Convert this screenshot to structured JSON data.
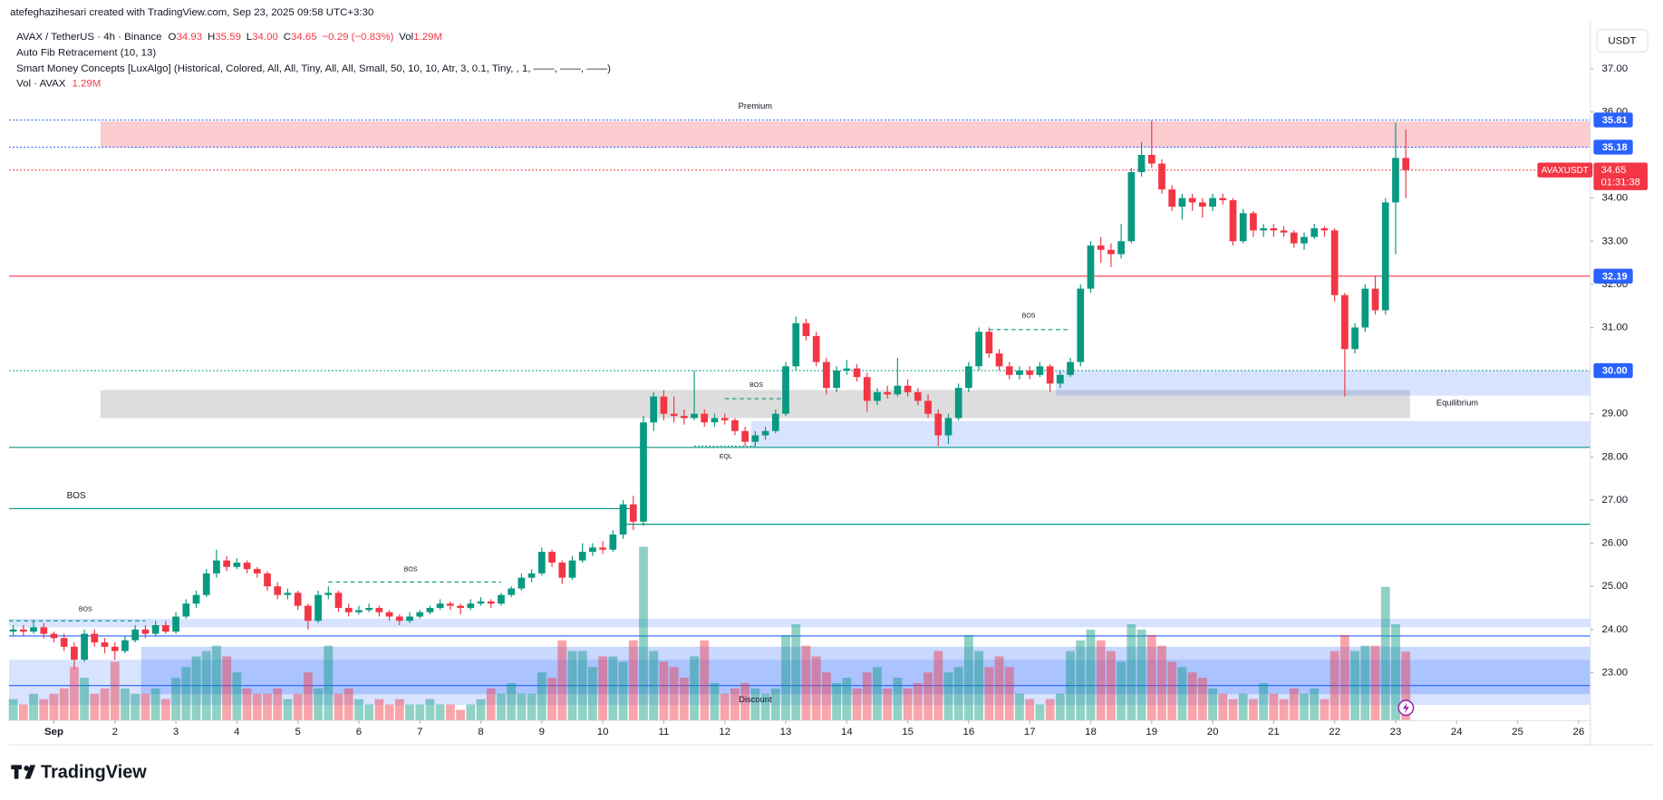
{
  "chart_data": {
    "type": "candlestick",
    "credit": "atefeghazihesari created with TradingView.com, Sep 23, 2025 09:58 UTC+3:30",
    "symbol": "AVAX / TetherUS · 4h · Binance",
    "ohlc": [
      {
        "key": "O",
        "value": "34.93"
      },
      {
        "key": "H",
        "value": "35.59"
      },
      {
        "key": "L",
        "value": "34.00"
      },
      {
        "key": "C",
        "value": "34.65"
      }
    ],
    "change": "−0.29 (−0.83%)",
    "vol_key": "Vol",
    "vol_value": "1.29M",
    "indicators": [
      "Auto Fib Retracement (10, 13)",
      "Smart Money Concepts [LuxAlgo] (Historical, Colored, All, All, Tiny, All, All, Small, 50, 10, 10, Atr, 3, 0.1, Tiny, , 1, ——, ——, ——)"
    ],
    "vol_indicator": "Vol · AVAX",
    "vol_indicator_value": "1.29M",
    "currency": "USDT",
    "brand": "TradingView",
    "up_color": "#089981",
    "down_color": "#f23645",
    "ylim": [
      21.3,
      38.1
    ],
    "yticks": [
      {
        "value": 37,
        "label": "37.00"
      },
      {
        "value": 36,
        "label": "36.00"
      },
      {
        "value": 34,
        "label": "34.00"
      },
      {
        "value": 33,
        "label": "33.00"
      },
      {
        "value": 32,
        "label": "32.00"
      },
      {
        "value": 31,
        "label": "31.00"
      },
      {
        "value": 29,
        "label": "29.00"
      },
      {
        "value": 28,
        "label": "28.00"
      },
      {
        "value": 27,
        "label": "27.00"
      },
      {
        "value": 26,
        "label": "26.00"
      },
      {
        "value": 25,
        "label": "25.00"
      },
      {
        "value": 24,
        "label": "24.00"
      },
      {
        "value": 23,
        "label": "23.00"
      }
    ],
    "xticks": [
      {
        "value": 4,
        "label": "Sep"
      },
      {
        "value": 10,
        "label": "2"
      },
      {
        "value": 16,
        "label": "3"
      },
      {
        "value": 22,
        "label": "4"
      },
      {
        "value": 28,
        "label": "5"
      },
      {
        "value": 34,
        "label": "6"
      },
      {
        "value": 40,
        "label": "7"
      },
      {
        "value": 46,
        "label": "8"
      },
      {
        "value": 52,
        "label": "9"
      },
      {
        "value": 58,
        "label": "10"
      },
      {
        "value": 64,
        "label": "11"
      },
      {
        "value": 70,
        "label": "12"
      },
      {
        "value": 76,
        "label": "13"
      },
      {
        "value": 82,
        "label": "14"
      },
      {
        "value": 88,
        "label": "15"
      },
      {
        "value": 94,
        "label": "16"
      },
      {
        "value": 100,
        "label": "17"
      },
      {
        "value": 106,
        "label": "18"
      },
      {
        "value": 112,
        "label": "19"
      },
      {
        "value": 118,
        "label": "20"
      },
      {
        "value": 124,
        "label": "21"
      },
      {
        "value": 130,
        "label": "22"
      },
      {
        "value": 136,
        "label": "23"
      },
      {
        "value": 142,
        "label": "24"
      },
      {
        "value": 148,
        "label": "25"
      },
      {
        "value": 154,
        "label": "26"
      }
    ],
    "candles": [
      [
        23.95,
        24.1,
        23.85,
        24.0
      ],
      [
        24.0,
        24.1,
        23.85,
        23.95
      ],
      [
        23.95,
        24.2,
        23.9,
        24.05
      ],
      [
        24.05,
        24.15,
        23.8,
        23.9
      ],
      [
        23.9,
        23.95,
        23.7,
        23.8
      ],
      [
        23.8,
        23.9,
        23.5,
        23.6
      ],
      [
        23.6,
        23.7,
        23.1,
        23.3
      ],
      [
        23.3,
        24.0,
        23.25,
        23.9
      ],
      [
        23.9,
        24.0,
        23.6,
        23.7
      ],
      [
        23.7,
        23.8,
        23.45,
        23.6
      ],
      [
        23.6,
        23.7,
        23.3,
        23.5
      ],
      [
        23.5,
        23.85,
        23.45,
        23.75
      ],
      [
        23.75,
        24.1,
        23.7,
        24.0
      ],
      [
        24.0,
        24.1,
        23.8,
        23.9
      ],
      [
        23.9,
        24.2,
        23.85,
        24.1
      ],
      [
        24.1,
        24.2,
        23.9,
        23.95
      ],
      [
        23.95,
        24.4,
        23.9,
        24.3
      ],
      [
        24.3,
        24.7,
        24.25,
        24.6
      ],
      [
        24.6,
        24.9,
        24.5,
        24.8
      ],
      [
        24.8,
        25.4,
        24.75,
        25.3
      ],
      [
        25.3,
        25.85,
        25.2,
        25.6
      ],
      [
        25.6,
        25.7,
        25.35,
        25.45
      ],
      [
        25.45,
        25.65,
        25.4,
        25.55
      ],
      [
        25.55,
        25.6,
        25.3,
        25.4
      ],
      [
        25.4,
        25.45,
        25.2,
        25.3
      ],
      [
        25.3,
        25.35,
        24.9,
        25.0
      ],
      [
        25.0,
        25.1,
        24.7,
        24.8
      ],
      [
        24.8,
        24.95,
        24.7,
        24.85
      ],
      [
        24.85,
        24.9,
        24.45,
        24.55
      ],
      [
        24.55,
        24.6,
        24.0,
        24.2
      ],
      [
        24.2,
        24.9,
        24.15,
        24.8
      ],
      [
        24.8,
        25.0,
        24.7,
        24.85
      ],
      [
        24.85,
        24.9,
        24.4,
        24.5
      ],
      [
        24.5,
        24.6,
        24.3,
        24.4
      ],
      [
        24.4,
        24.55,
        24.35,
        24.45
      ],
      [
        24.45,
        24.6,
        24.4,
        24.5
      ],
      [
        24.5,
        24.55,
        24.3,
        24.4
      ],
      [
        24.4,
        24.45,
        24.2,
        24.3
      ],
      [
        24.3,
        24.35,
        24.1,
        24.2
      ],
      [
        24.2,
        24.4,
        24.15,
        24.3
      ],
      [
        24.3,
        24.45,
        24.25,
        24.4
      ],
      [
        24.4,
        24.55,
        24.35,
        24.5
      ],
      [
        24.5,
        24.7,
        24.45,
        24.6
      ],
      [
        24.6,
        24.65,
        24.45,
        24.55
      ],
      [
        24.55,
        24.6,
        24.35,
        24.5
      ],
      [
        24.5,
        24.7,
        24.45,
        24.6
      ],
      [
        24.6,
        24.75,
        24.55,
        24.65
      ],
      [
        24.65,
        24.7,
        24.5,
        24.6
      ],
      [
        24.6,
        24.85,
        24.55,
        24.8
      ],
      [
        24.8,
        25.0,
        24.75,
        24.95
      ],
      [
        24.95,
        25.3,
        24.9,
        25.2
      ],
      [
        25.2,
        25.4,
        25.1,
        25.3
      ],
      [
        25.3,
        25.9,
        25.25,
        25.8
      ],
      [
        25.8,
        25.85,
        25.45,
        25.55
      ],
      [
        25.55,
        25.6,
        25.05,
        25.2
      ],
      [
        25.2,
        25.7,
        25.15,
        25.6
      ],
      [
        25.6,
        26.0,
        25.55,
        25.8
      ],
      [
        25.8,
        26.0,
        25.7,
        25.9
      ],
      [
        25.9,
        26.05,
        25.75,
        25.85
      ],
      [
        25.85,
        26.3,
        25.8,
        26.2
      ],
      [
        26.2,
        27.0,
        26.1,
        26.9
      ],
      [
        26.9,
        27.1,
        26.3,
        26.5
      ],
      [
        26.5,
        28.95,
        26.4,
        28.8
      ],
      [
        28.8,
        29.5,
        28.6,
        29.4
      ],
      [
        29.4,
        29.55,
        28.85,
        29.0
      ],
      [
        29.0,
        29.4,
        28.8,
        28.95
      ],
      [
        28.95,
        29.1,
        28.75,
        28.9
      ],
      [
        28.9,
        30.0,
        28.85,
        29.0
      ],
      [
        29.0,
        29.1,
        28.7,
        28.8
      ],
      [
        28.8,
        29.0,
        28.7,
        28.9
      ],
      [
        28.9,
        29.0,
        28.75,
        28.85
      ],
      [
        28.85,
        28.9,
        28.5,
        28.6
      ],
      [
        28.6,
        28.7,
        28.25,
        28.35
      ],
      [
        28.35,
        28.6,
        28.25,
        28.5
      ],
      [
        28.5,
        28.7,
        28.4,
        28.6
      ],
      [
        28.6,
        29.1,
        28.55,
        29.0
      ],
      [
        29.0,
        30.2,
        28.95,
        30.1
      ],
      [
        30.1,
        31.25,
        30.0,
        31.1
      ],
      [
        31.1,
        31.2,
        30.7,
        30.8
      ],
      [
        30.8,
        30.9,
        30.1,
        30.2
      ],
      [
        30.2,
        30.3,
        29.45,
        29.6
      ],
      [
        29.6,
        30.1,
        29.5,
        30.0
      ],
      [
        30.0,
        30.25,
        29.9,
        30.05
      ],
      [
        30.05,
        30.15,
        29.75,
        29.85
      ],
      [
        29.85,
        29.95,
        29.05,
        29.3
      ],
      [
        29.3,
        29.6,
        29.2,
        29.5
      ],
      [
        29.5,
        29.65,
        29.35,
        29.45
      ],
      [
        29.45,
        30.3,
        29.4,
        29.65
      ],
      [
        29.65,
        29.8,
        29.4,
        29.5
      ],
      [
        29.5,
        29.6,
        29.2,
        29.3
      ],
      [
        29.3,
        29.45,
        28.9,
        29.0
      ],
      [
        29.0,
        29.1,
        28.25,
        28.5
      ],
      [
        28.5,
        29.0,
        28.3,
        28.9
      ],
      [
        28.9,
        29.7,
        28.85,
        29.6
      ],
      [
        29.6,
        30.2,
        29.5,
        30.1
      ],
      [
        30.1,
        31.0,
        30.0,
        30.9
      ],
      [
        30.9,
        31.0,
        30.3,
        30.4
      ],
      [
        30.4,
        30.5,
        30.0,
        30.1
      ],
      [
        30.1,
        30.2,
        29.8,
        29.9
      ],
      [
        29.9,
        30.1,
        29.8,
        30.0
      ],
      [
        30.0,
        30.1,
        29.8,
        29.9
      ],
      [
        29.9,
        30.2,
        29.85,
        30.1
      ],
      [
        30.1,
        30.15,
        29.5,
        29.7
      ],
      [
        29.7,
        30.0,
        29.6,
        29.9
      ],
      [
        29.9,
        30.3,
        29.85,
        30.2
      ],
      [
        30.2,
        32.0,
        30.1,
        31.9
      ],
      [
        31.9,
        33.0,
        31.8,
        32.9
      ],
      [
        32.9,
        33.1,
        32.5,
        32.8
      ],
      [
        32.8,
        32.95,
        32.4,
        32.7
      ],
      [
        32.7,
        33.4,
        32.6,
        33.0
      ],
      [
        33.0,
        34.7,
        32.95,
        34.6
      ],
      [
        34.6,
        35.3,
        34.5,
        35.0
      ],
      [
        35.0,
        35.81,
        34.7,
        34.8
      ],
      [
        34.8,
        34.9,
        34.1,
        34.2
      ],
      [
        34.2,
        34.3,
        33.7,
        33.8
      ],
      [
        33.8,
        34.1,
        33.5,
        34.0
      ],
      [
        34.0,
        34.1,
        33.7,
        33.9
      ],
      [
        33.9,
        34.0,
        33.55,
        33.8
      ],
      [
        33.8,
        34.1,
        33.7,
        34.0
      ],
      [
        34.0,
        34.1,
        33.85,
        33.95
      ],
      [
        33.95,
        34.0,
        32.9,
        33.0
      ],
      [
        33.0,
        33.75,
        32.95,
        33.65
      ],
      [
        33.65,
        33.7,
        33.1,
        33.25
      ],
      [
        33.25,
        33.4,
        33.1,
        33.3
      ],
      [
        33.3,
        33.4,
        33.1,
        33.25
      ],
      [
        33.25,
        33.35,
        33.1,
        33.2
      ],
      [
        33.2,
        33.25,
        32.85,
        32.95
      ],
      [
        32.95,
        33.2,
        32.8,
        33.1
      ],
      [
        33.1,
        33.4,
        33.05,
        33.3
      ],
      [
        33.3,
        33.35,
        33.1,
        33.25
      ],
      [
        33.25,
        33.3,
        31.6,
        31.75
      ],
      [
        31.75,
        31.8,
        29.4,
        30.5
      ],
      [
        30.5,
        31.1,
        30.4,
        31.0
      ],
      [
        31.0,
        32.0,
        30.9,
        31.9
      ],
      [
        31.9,
        32.2,
        31.3,
        31.4
      ],
      [
        31.4,
        34.0,
        31.3,
        33.9
      ],
      [
        33.9,
        35.75,
        32.7,
        34.93
      ],
      [
        34.93,
        35.59,
        34.0,
        34.65
      ]
    ],
    "volume": [
      0.4,
      0.3,
      0.5,
      0.4,
      0.5,
      0.6,
      1.0,
      0.8,
      0.5,
      0.6,
      1.1,
      0.6,
      0.5,
      0.5,
      0.6,
      0.4,
      0.8,
      1.0,
      1.2,
      1.3,
      1.4,
      1.2,
      0.9,
      0.6,
      0.5,
      0.5,
      0.6,
      0.4,
      0.5,
      0.9,
      0.6,
      1.4,
      0.5,
      0.6,
      0.4,
      0.3,
      0.4,
      0.3,
      0.4,
      0.3,
      0.3,
      0.4,
      0.3,
      0.3,
      0.2,
      0.3,
      0.4,
      0.6,
      0.5,
      0.7,
      0.5,
      0.5,
      0.9,
      0.8,
      1.5,
      1.3,
      1.3,
      1.0,
      1.2,
      1.2,
      1.1,
      1.5,
      3.25,
      1.3,
      1.1,
      1.0,
      0.8,
      1.2,
      1.5,
      0.7,
      0.5,
      0.6,
      0.7,
      0.6,
      0.5,
      0.6,
      1.6,
      1.8,
      1.4,
      1.2,
      0.9,
      0.7,
      0.8,
      0.6,
      0.9,
      1.0,
      0.6,
      0.8,
      0.6,
      0.7,
      0.9,
      1.3,
      0.9,
      1.0,
      1.6,
      1.3,
      1.0,
      1.2,
      1.0,
      0.5,
      0.4,
      0.3,
      0.4,
      0.5,
      1.3,
      1.5,
      1.7,
      1.5,
      1.3,
      1.1,
      1.8,
      1.7,
      1.6,
      1.4,
      1.1,
      1.0,
      0.9,
      0.8,
      0.6,
      0.5,
      0.4,
      0.5,
      0.4,
      0.7,
      0.5,
      0.4,
      0.6,
      0.5,
      0.6,
      0.4,
      1.3,
      1.6,
      1.3,
      1.4,
      1.4,
      2.5,
      1.8,
      1.29
    ],
    "zones": [
      {
        "label": "Premium",
        "top": 35.78,
        "bottom": 35.17,
        "from": 9,
        "color": "#f2364540",
        "label_color": "#f23645",
        "label_at": [
          73,
          36.12
        ]
      },
      {
        "label": "Equilibrium",
        "top": 29.55,
        "bottom": 28.9,
        "from": 9,
        "to": 137,
        "color": "#78787840",
        "label_color": "#9598a1",
        "label_at": [
          140,
          29.24
        ]
      },
      {
        "top": 30.0,
        "bottom": 29.42,
        "from": 103,
        "color": "#2962ff2e"
      },
      {
        "top": 28.83,
        "bottom": 28.22,
        "from": 73,
        "color": "#2962ff2e"
      },
      {
        "top": 24.25,
        "bottom": 24.05,
        "from": 0,
        "color": "#2962ff2e"
      },
      {
        "top": 23.6,
        "bottom": 22.5,
        "from": 13,
        "color": "#2962ff40"
      },
      {
        "label": "Discount",
        "top": 23.3,
        "bottom": 22.25,
        "from": 0,
        "color": "#2962ff2e",
        "label_color": "#9598a1",
        "label_at": [
          73,
          22.37
        ]
      }
    ],
    "levels": [
      {
        "value": 35.81,
        "color": "#2962ff",
        "style": "dotted",
        "from": 0
      },
      {
        "value": 35.18,
        "color": "#2962ff",
        "style": "dotted",
        "from": 0
      },
      {
        "value": 34.65,
        "color": "#f23645",
        "style": "dotted",
        "from": 0
      },
      {
        "value": 32.19,
        "color": "#f23645",
        "style": "solid",
        "from": 0
      },
      {
        "value": 30.0,
        "color": "#089981",
        "style": "dotted",
        "from": 0
      },
      {
        "value": 28.22,
        "color": "#089981",
        "style": "solid",
        "from": 0
      },
      {
        "value": 26.8,
        "color": "#089981",
        "style": "solid",
        "from": 0,
        "to": 61
      },
      {
        "value": 26.44,
        "color": "#089981",
        "style": "solid",
        "from": 60
      },
      {
        "value": 23.85,
        "color": "#2962ff",
        "style": "solid",
        "from": 0
      },
      {
        "value": 22.7,
        "color": "#2962ff",
        "style": "solid",
        "from": 0
      },
      {
        "value": 24.2,
        "color": "#089981",
        "style": "dashed",
        "from": 0,
        "to": 13
      },
      {
        "value": 25.1,
        "color": "#089981",
        "style": "dashed",
        "from": 31,
        "to": 48
      },
      {
        "value": 29.35,
        "color": "#089981",
        "style": "dashed",
        "from": 70,
        "to": 76
      },
      {
        "value": 30.95,
        "color": "#089981",
        "style": "dashed",
        "from": 96,
        "to": 104
      },
      {
        "value": 28.25,
        "color": "#089981",
        "style": "dotted",
        "from": 67,
        "to": 73
      }
    ],
    "structure_labels": [
      {
        "text": "BOS",
        "index": 6.2,
        "price": 27.1,
        "large": true
      },
      {
        "text": "BOS",
        "index": 7.1,
        "price": 24.46
      },
      {
        "text": "BOS",
        "index": 39.1,
        "price": 25.39
      },
      {
        "text": "BOS",
        "index": 73.1,
        "price": 29.66
      },
      {
        "text": "BOS",
        "index": 99.9,
        "price": 31.27
      },
      {
        "text": "EQL",
        "index": 70.1,
        "price": 28.0
      }
    ],
    "price_tags": [
      {
        "value": 35.81,
        "label": "35.81",
        "color": "#2962ff"
      },
      {
        "value": 35.18,
        "label": "35.18",
        "color": "#2962ff"
      },
      {
        "value": 32.19,
        "label": "32.19",
        "color": "#2962ff"
      },
      {
        "value": 30.0,
        "label": "30.00",
        "color": "#2962ff"
      }
    ],
    "last_price": {
      "value": 34.65,
      "label": "34.65",
      "symbol": "AVAXUSDT",
      "countdown": "01:31:38",
      "color": "#f23645"
    }
  }
}
